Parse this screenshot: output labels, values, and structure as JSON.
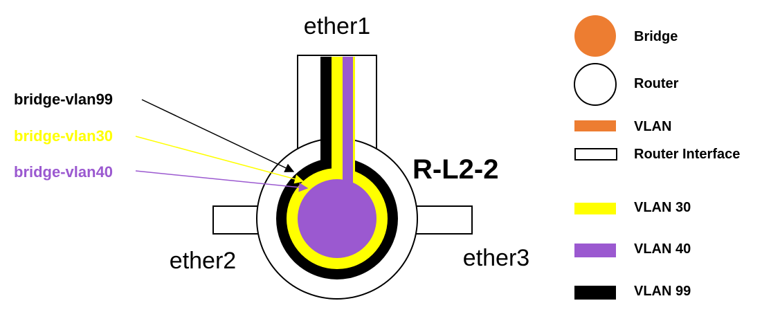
{
  "router": {
    "name": "R-L2-2"
  },
  "ports": {
    "ether1": "ether1",
    "ether2": "ether2",
    "ether3": "ether3"
  },
  "bridges": {
    "vlan99": {
      "label": "bridge-vlan99",
      "color": "#000000"
    },
    "vlan30": {
      "label": "bridge-vlan30",
      "color": "#ffff00"
    },
    "vlan40": {
      "label": "bridge-vlan40",
      "color": "#9b59d0"
    }
  },
  "legend": {
    "bridge": {
      "label": "Bridge",
      "color": "#ed7d31"
    },
    "router": {
      "label": "Router"
    },
    "vlan": {
      "label": "VLAN",
      "color": "#ed7d31"
    },
    "router_interface": {
      "label": "Router Interface"
    },
    "vlan30": {
      "label": "VLAN 30",
      "color": "#ffff00"
    },
    "vlan40": {
      "label": "VLAN 40",
      "color": "#9b59d0"
    },
    "vlan99": {
      "label": "VLAN 99",
      "color": "#000000"
    }
  }
}
